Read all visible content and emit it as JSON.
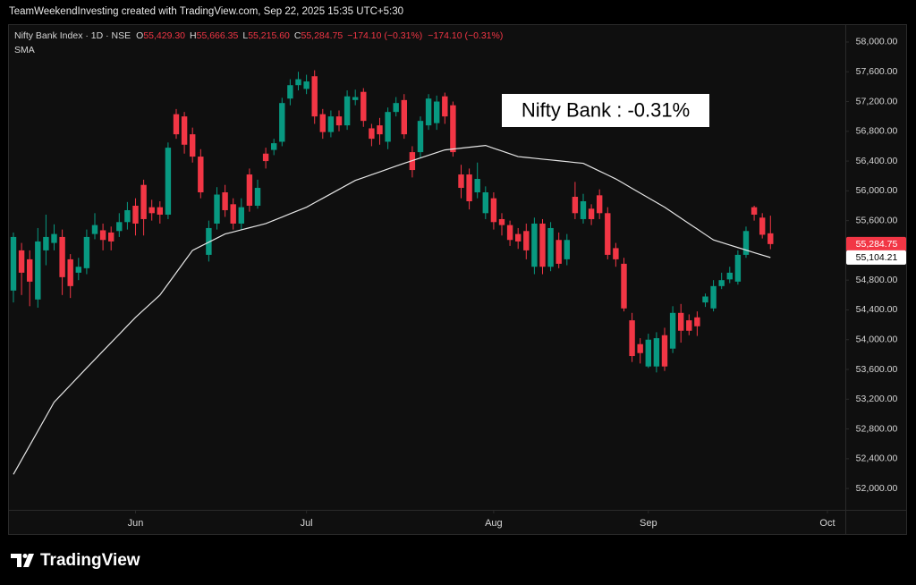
{
  "header": {
    "text": "TeamWeekendInvesting created with TradingView.com, Sep 22, 2025 15:35 UTC+5:30"
  },
  "chart_data": {
    "type": "candlestick",
    "legend": {
      "items": [
        {
          "key": "O",
          "value": "55,429.30"
        },
        {
          "key": "H",
          "value": "55,666.35"
        },
        {
          "key": "L",
          "value": "55,215.60"
        },
        {
          "key": "C",
          "value": "55,284.75"
        }
      ],
      "change": [
        "−174.10 (−0.31%)",
        "−174.10 (−0.31%)"
      ]
    },
    "annotation": "Nifty Bank : -0.31%",
    "xlim": [
      -0.55,
      102.2
    ],
    "xticks": [
      {
        "value": 15,
        "label": "Jun"
      },
      {
        "value": 36,
        "label": "Jul"
      },
      {
        "value": 59,
        "label": "Aug"
      },
      {
        "value": 78,
        "label": "Sep"
      },
      {
        "value": 100,
        "label": "Oct"
      }
    ],
    "ylim": [
      51713,
      58228
    ],
    "yticks": [
      {
        "value": 52000,
        "label": "52,000.00"
      },
      {
        "value": 52400,
        "label": "52,400.00"
      },
      {
        "value": 52800,
        "label": "52,800.00"
      },
      {
        "value": 53200,
        "label": "53,200.00"
      },
      {
        "value": 53600,
        "label": "53,600.00"
      },
      {
        "value": 54000,
        "label": "54,000.00"
      },
      {
        "value": 54400,
        "label": "54,400.00"
      },
      {
        "value": 54800,
        "label": "54,800.00"
      },
      {
        "value": 55200,
        "label": "55,200.00"
      },
      {
        "value": 55600,
        "label": "55,600.00"
      },
      {
        "value": 56000,
        "label": "56,000.00"
      },
      {
        "value": 56400,
        "label": "56,400.00"
      },
      {
        "value": 56800,
        "label": "56,800.00"
      },
      {
        "value": 57200,
        "label": "57,200.00"
      },
      {
        "value": 57600,
        "label": "57,600.00"
      },
      {
        "value": 58000,
        "label": "58,000.00"
      }
    ],
    "price_labels": [
      {
        "value": 55284.75,
        "label": "55,284.75",
        "color": "#f23645"
      },
      {
        "value": 55104.21,
        "label": "55,104.21",
        "color": "#ffffff"
      }
    ],
    "series": [
      {
        "name": "Nifty Bank Index · 1D · NSE",
        "type": "candlestick",
        "up_color": "#089981",
        "down_color": "#f23645",
        "open": [
          54660,
          55200,
          55080,
          54540,
          55200,
          55300,
          55380,
          55080,
          54900,
          54960,
          55420,
          55470,
          55440,
          55460,
          55580,
          55800,
          56080,
          55780,
          55780,
          55680,
          57030,
          57000,
          56760,
          56460,
          55140,
          55560,
          55980,
          55820,
          55560,
          56220,
          55800,
          56500,
          56550,
          56660,
          57240,
          57420,
          57370,
          57540,
          57030,
          56790,
          57000,
          56880,
          57220,
          57330,
          56840,
          56880,
          56660,
          57060,
          57220,
          56520,
          56520,
          56880,
          56910,
          57270,
          57150,
          56220,
          56220,
          55980,
          55700,
          55900,
          55620,
          55540,
          55420,
          55460,
          54980,
          55560,
          54980,
          55340,
          55080,
          55920,
          55620,
          55760,
          55940,
          55700,
          55230,
          55020,
          54260,
          53940,
          53640,
          53640,
          54060,
          53880,
          54360,
          54260,
          54300,
          54500,
          54420,
          54720,
          54810,
          54780,
          55140,
          55780,
          55640,
          55429.3
        ],
        "high": [
          55440,
          55300,
          55200,
          55500,
          55680,
          55550,
          55480,
          55150,
          55100,
          55480,
          55700,
          55560,
          55520,
          55700,
          55850,
          55900,
          56150,
          55880,
          55860,
          56650,
          57100,
          57060,
          56850,
          56560,
          55600,
          56050,
          56080,
          55900,
          55900,
          56300,
          56150,
          56580,
          56700,
          57250,
          57500,
          57600,
          57560,
          57620,
          57100,
          57080,
          57080,
          57350,
          57360,
          57380,
          56900,
          56980,
          57120,
          57260,
          57300,
          56600,
          57000,
          57300,
          57280,
          57320,
          57200,
          56350,
          56300,
          56380,
          56060,
          55980,
          55700,
          55600,
          55500,
          55560,
          55640,
          55620,
          55580,
          55440,
          55420,
          56120,
          55960,
          55820,
          56020,
          55780,
          55300,
          55100,
          54360,
          54020,
          54080,
          54100,
          54160,
          54450,
          54480,
          54340,
          54380,
          54620,
          54800,
          54900,
          54980,
          55200,
          55520,
          55800,
          55700,
          55666.35
        ],
        "low": [
          54500,
          54600,
          54450,
          54430,
          55000,
          55200,
          54600,
          54560,
          54800,
          54880,
          55350,
          55200,
          55200,
          55380,
          55480,
          55400,
          55400,
          55600,
          55560,
          55620,
          56700,
          56500,
          56380,
          55900,
          55050,
          55480,
          55650,
          55480,
          55480,
          55720,
          55760,
          56300,
          56480,
          56600,
          57150,
          57350,
          57300,
          56900,
          56700,
          56720,
          56800,
          56820,
          57150,
          56860,
          56600,
          56620,
          56560,
          57000,
          56700,
          56180,
          56450,
          56820,
          56820,
          56900,
          56460,
          55900,
          55750,
          55900,
          55620,
          55480,
          55400,
          55260,
          55220,
          55080,
          54880,
          54880,
          54920,
          54960,
          55000,
          55620,
          55560,
          55540,
          55620,
          55080,
          54980,
          54380,
          53700,
          53680,
          53620,
          53560,
          53580,
          53820,
          53960,
          54060,
          54050,
          54440,
          54380,
          54680,
          54760,
          54740,
          55100,
          55600,
          55360,
          55215.6
        ],
        "close": [
          55380,
          54900,
          54780,
          55320,
          55380,
          55420,
          54840,
          54720,
          54980,
          55380,
          55540,
          55340,
          55320,
          55580,
          55740,
          55560,
          55620,
          55700,
          55680,
          56580,
          56760,
          56620,
          56460,
          55980,
          55500,
          55950,
          55740,
          55560,
          55780,
          55800,
          56040,
          56400,
          56640,
          57180,
          57420,
          57500,
          57470,
          57000,
          56790,
          57000,
          56880,
          57270,
          57260,
          56940,
          56700,
          56760,
          57060,
          57180,
          56760,
          56280,
          56940,
          57240,
          57200,
          57000,
          56520,
          56040,
          55860,
          56160,
          55980,
          55580,
          55540,
          55340,
          55320,
          55200,
          55560,
          54980,
          55500,
          55020,
          55340,
          55700,
          55860,
          55620,
          55700,
          55140,
          55080,
          54420,
          53780,
          53820,
          54000,
          54020,
          53640,
          54360,
          54120,
          54120,
          54180,
          54580,
          54720,
          54800,
          54900,
          55140,
          55460,
          55680,
          55410,
          55284.75
        ]
      },
      {
        "name": "SMA",
        "type": "line",
        "color": "#e6e6e6",
        "values": [
          52190,
          52384,
          52578,
          52772,
          52966,
          53160,
          53275,
          53390,
          53505,
          53620,
          53733,
          53847,
          53960,
          54073,
          54187,
          54300,
          54400,
          54500,
          54600,
          54750,
          54900,
          55050,
          55200,
          55255,
          55310,
          55365,
          55420,
          55448,
          55476,
          55504,
          55532,
          55560,
          55604,
          55648,
          55692,
          55736,
          55780,
          55840,
          55900,
          55960,
          56020,
          56080,
          56140,
          56178,
          56217,
          56255,
          56293,
          56332,
          56370,
          56406,
          56442,
          56478,
          56514,
          56550,
          56562,
          56574,
          56586,
          56598,
          56610,
          56572,
          56535,
          56498,
          56460,
          56449,
          56438,
          56426,
          56415,
          56404,
          56393,
          56381,
          56370,
          56318,
          56265,
          56213,
          56160,
          56097,
          56033,
          55970,
          55907,
          55843,
          55780,
          55707,
          55633,
          55560,
          55487,
          55413,
          55340,
          55306,
          55272,
          55238,
          55204,
          55170,
          55136,
          55104.21
        ]
      }
    ]
  },
  "footer": {
    "logo": "TradingView"
  }
}
